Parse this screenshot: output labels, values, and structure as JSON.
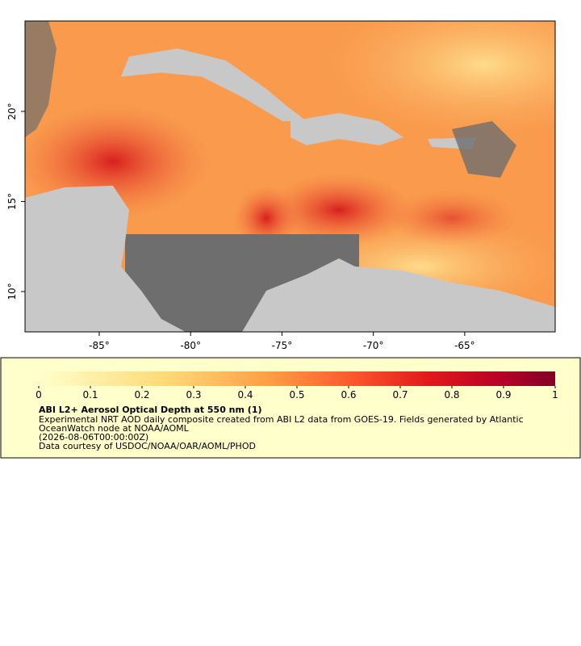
{
  "map": {
    "xlim": [
      -89.06,
      -60.05
    ],
    "ylim": [
      7.76,
      25.02
    ],
    "xticks": [
      {
        "value": -85,
        "label": "-85°"
      },
      {
        "value": -80,
        "label": "-80°"
      },
      {
        "value": -75,
        "label": "-75°"
      },
      {
        "value": -70,
        "label": "-70°"
      },
      {
        "value": -65,
        "label": "-65°"
      }
    ],
    "yticks": [
      {
        "value": 10,
        "label": "10°"
      },
      {
        "value": 15,
        "label": "15°"
      },
      {
        "value": 20,
        "label": "20°"
      }
    ]
  },
  "colorbar": {
    "lim": [
      0,
      1
    ],
    "ticks": [
      0,
      0.1,
      0.2,
      0.3,
      0.4,
      0.5,
      0.6,
      0.7,
      0.8,
      0.9,
      1
    ]
  },
  "legend": {
    "title": "ABI L2+ Aerosol Optical Depth at 550 nm (1)",
    "lines": [
      "Experimental NRT AOD daily composite created from ABI L2 data from GOES-19. Fields generated by Atlantic",
      "OceanWatch node at NOAA/AOML",
      "(2026-08-06T00:00:00Z)",
      "Data courtesy of USDOC/NOAA/OAR/AOML/PHOD"
    ]
  }
}
